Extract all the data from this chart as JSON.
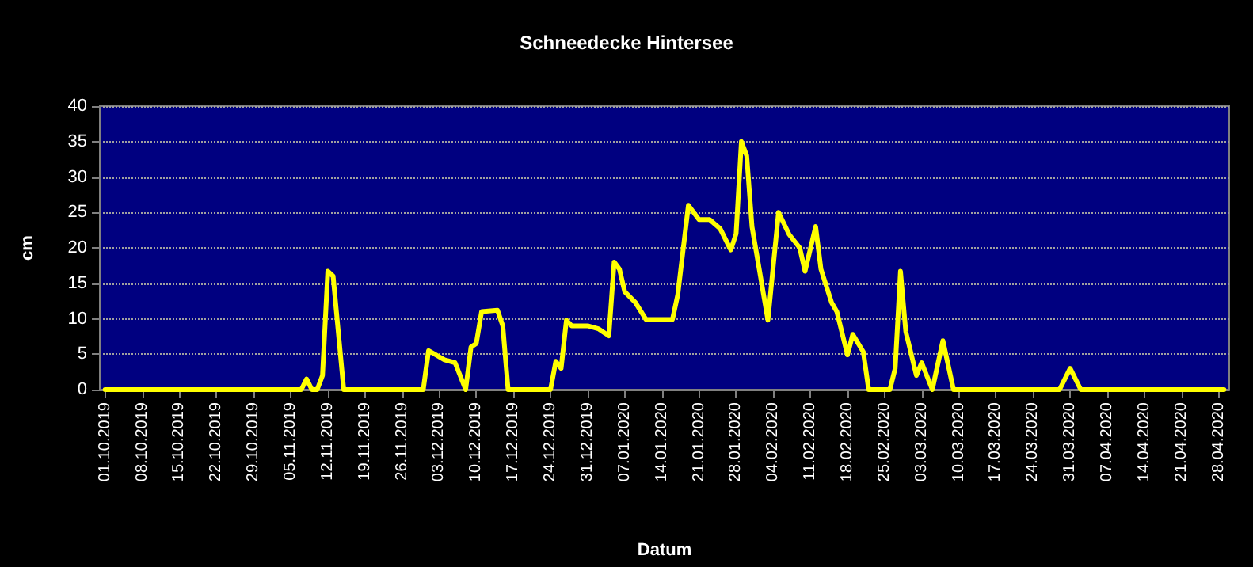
{
  "chart_data": {
    "type": "line",
    "title": "Schneedecke Hintersee",
    "xlabel": "Datum",
    "ylabel": "cm",
    "x": [
      "2019-10-01",
      "2019-11-07",
      "2019-11-08",
      "2019-11-09",
      "2019-11-10",
      "2019-11-11",
      "2019-11-12",
      "2019-11-13",
      "2019-11-14",
      "2019-11-15",
      "2019-11-30",
      "2019-12-01",
      "2019-12-04",
      "2019-12-06",
      "2019-12-08",
      "2019-12-09",
      "2019-12-10",
      "2019-12-11",
      "2019-12-14",
      "2019-12-15",
      "2019-12-16",
      "2019-12-24",
      "2019-12-25",
      "2019-12-26",
      "2019-12-27",
      "2019-12-28",
      "2019-12-31",
      "2020-01-02",
      "2020-01-04",
      "2020-01-05",
      "2020-01-06",
      "2020-01-07",
      "2020-01-09",
      "2020-01-11",
      "2020-01-16",
      "2020-01-17",
      "2020-01-19",
      "2020-01-21",
      "2020-01-23",
      "2020-01-25",
      "2020-01-27",
      "2020-01-28",
      "2020-01-29",
      "2020-01-30",
      "2020-01-31",
      "2020-02-03",
      "2020-02-05",
      "2020-02-07",
      "2020-02-09",
      "2020-02-10",
      "2020-02-12",
      "2020-02-13",
      "2020-02-15",
      "2020-02-16",
      "2020-02-18",
      "2020-02-19",
      "2020-02-21",
      "2020-02-22",
      "2020-02-26",
      "2020-02-27",
      "2020-02-28",
      "2020-02-29",
      "2020-03-02",
      "2020-03-03",
      "2020-03-05",
      "2020-03-07",
      "2020-03-09",
      "2020-03-29",
      "2020-03-31",
      "2020-04-02",
      "2020-04-29"
    ],
    "series": [
      {
        "color": "#ffff00",
        "values": [
          0,
          0,
          1.5,
          0,
          0,
          2,
          16.7,
          16,
          8,
          0,
          0,
          5.5,
          4.2,
          3.8,
          0,
          6,
          6.5,
          11,
          11.2,
          9,
          0,
          0,
          4,
          3,
          9.8,
          9,
          9,
          8.6,
          7.6,
          18,
          17,
          13.8,
          12.3,
          9.9,
          9.9,
          13.4,
          26,
          24,
          24,
          22.7,
          19.7,
          22,
          35,
          33,
          23,
          9.8,
          25,
          21.9,
          20,
          16.7,
          23,
          17,
          12.3,
          11,
          4.9,
          7.8,
          5.3,
          0,
          0,
          3,
          16.7,
          8.2,
          2,
          3.8,
          0,
          6.9,
          0,
          0,
          3,
          0,
          0
        ]
      }
    ],
    "xlim": [
      "2019-09-30",
      "2020-04-30"
    ],
    "xticks": [
      {
        "value": "2019-10-01",
        "label": "01.10.2019"
      },
      {
        "value": "2019-10-08",
        "label": "08.10.2019"
      },
      {
        "value": "2019-10-15",
        "label": "15.10.2019"
      },
      {
        "value": "2019-10-22",
        "label": "22.10.2019"
      },
      {
        "value": "2019-10-29",
        "label": "29.10.2019"
      },
      {
        "value": "2019-11-05",
        "label": "05.11.2019"
      },
      {
        "value": "2019-11-12",
        "label": "12.11.2019"
      },
      {
        "value": "2019-11-19",
        "label": "19.11.2019"
      },
      {
        "value": "2019-11-26",
        "label": "26.11.2019"
      },
      {
        "value": "2019-12-03",
        "label": "03.12.2019"
      },
      {
        "value": "2019-12-10",
        "label": "10.12.2019"
      },
      {
        "value": "2019-12-17",
        "label": "17.12.2019"
      },
      {
        "value": "2019-12-24",
        "label": "24.12.2019"
      },
      {
        "value": "2019-12-31",
        "label": "31.12.2019"
      },
      {
        "value": "2020-01-07",
        "label": "07.01.2020"
      },
      {
        "value": "2020-01-14",
        "label": "14.01.2020"
      },
      {
        "value": "2020-01-21",
        "label": "21.01.2020"
      },
      {
        "value": "2020-01-28",
        "label": "28.01.2020"
      },
      {
        "value": "2020-02-04",
        "label": "04.02.2020"
      },
      {
        "value": "2020-02-11",
        "label": "11.02.2020"
      },
      {
        "value": "2020-02-18",
        "label": "18.02.2020"
      },
      {
        "value": "2020-02-25",
        "label": "25.02.2020"
      },
      {
        "value": "2020-03-03",
        "label": "03.03.2020"
      },
      {
        "value": "2020-03-10",
        "label": "10.03.2020"
      },
      {
        "value": "2020-03-17",
        "label": "17.03.2020"
      },
      {
        "value": "2020-03-24",
        "label": "24.03.2020"
      },
      {
        "value": "2020-03-31",
        "label": "31.03.2020"
      },
      {
        "value": "2020-04-07",
        "label": "07.04.2020"
      },
      {
        "value": "2020-04-14",
        "label": "14.04.2020"
      },
      {
        "value": "2020-04-21",
        "label": "21.04.2020"
      },
      {
        "value": "2020-04-28",
        "label": "28.04.2020"
      }
    ],
    "ylim": [
      0,
      40
    ],
    "yticks": [
      0,
      5,
      10,
      15,
      20,
      25,
      30,
      35,
      40
    ],
    "grid": "y",
    "marker": "none",
    "line_style": "solid"
  }
}
